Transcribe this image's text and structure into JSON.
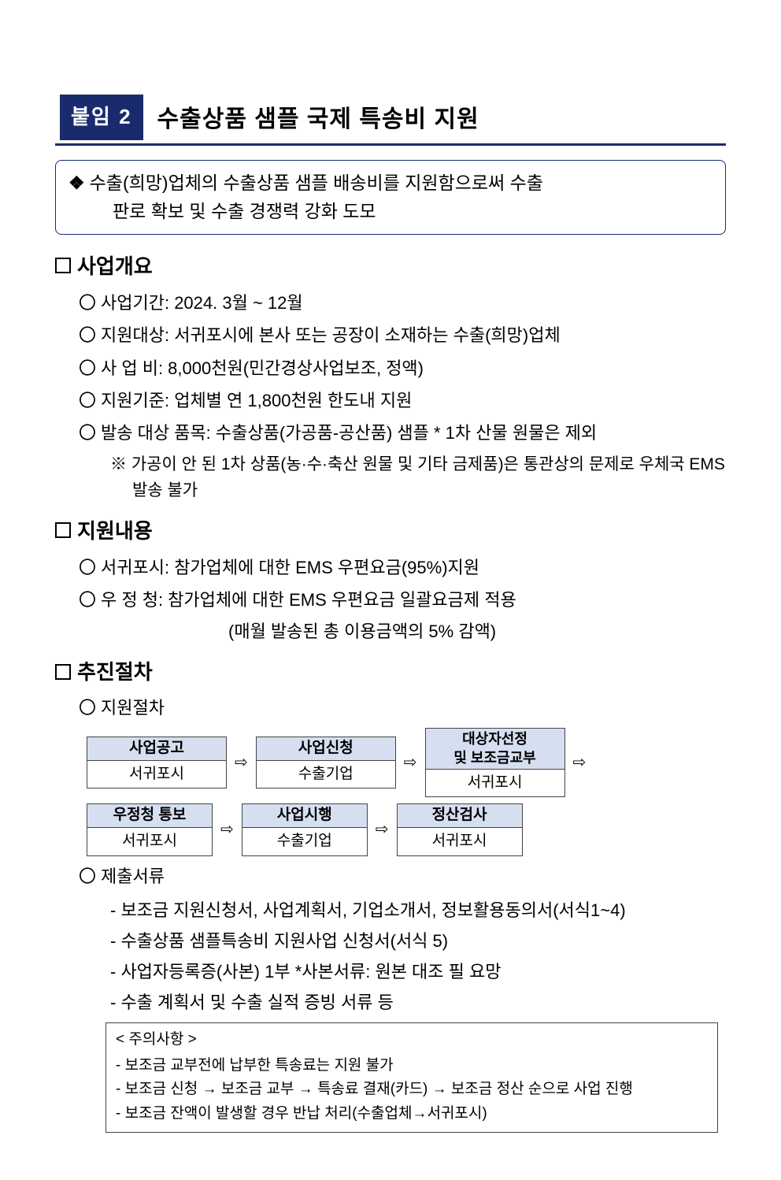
{
  "badge": "붙임 2",
  "title": "수출상품 샘플 국제 특송비 지원",
  "summary": {
    "line1": "수출(희망)업체의 수출상품 샘플 배송비를 지원함으로써 수출",
    "line2": "판로 확보 및 수출 경쟁력 강화 도모"
  },
  "sections": {
    "overview": {
      "head": "사업개요",
      "items": [
        "사업기간: 2024. 3월 ~ 12월",
        "지원대상: 서귀포시에 본사 또는 공장이 소재하는 수출(희망)업체",
        "사 업 비: 8,000천원(민간경상사업보조, 정액)",
        "지원기준: 업체별 연 1,800천원 한도내 지원",
        "발송 대상 품목: 수출상품(가공품-공산품) 샘플 * 1차 산물 원물은 제외"
      ],
      "note": "※ 가공이 안 된 1차 상품(농·수·축산 원물 및 기타 금제품)은 통관상의 문제로 우체국 EMS 발송 불가"
    },
    "content": {
      "head": "지원내용",
      "items": [
        "서귀포시: 참가업체에 대한 EMS 우편요금(95%)지원",
        "우 정 청: 참가업체에 대한 EMS 우편요금 일괄요금제 적용"
      ],
      "subline": "(매월 발송된 총 이용금액의 5% 감액)"
    },
    "procedure": {
      "head": "추진절차",
      "sub1": "지원절차",
      "flow": {
        "row1": [
          {
            "top": "사업공고",
            "bot": "서귀포시"
          },
          {
            "top": "사업신청",
            "bot": "수출기업"
          },
          {
            "top": "대상자선정\n및 보조금교부",
            "bot": "서귀포시",
            "two": true
          }
        ],
        "row2": [
          {
            "top": "우정청 통보",
            "bot": "서귀포시"
          },
          {
            "top": "사업시행",
            "bot": "수출기업"
          },
          {
            "top": "정산검사",
            "bot": "서귀포시"
          }
        ]
      },
      "sub2": "제출서류",
      "docs": [
        "- 보조금 지원신청서, 사업계획서, 기업소개서, 정보활용동의서(서식1~4)",
        "- 수출상품 샘플특송비 지원사업 신청서(서식 5)",
        "- 사업자등록증(사본) 1부      *사본서류: 원본 대조 필 요망",
        "- 수출 계획서 및 수출 실적 증빙 서류 등"
      ],
      "caution": {
        "title": "< 주의사항 >",
        "items": [
          "- 보조금 교부전에 납부한 특송료는 지원 불가",
          "- 보조금 신청 → 보조금 교부 → 특송료 결재(카드) → 보조금 정산 순으로 사업 진행",
          "- 보조금 잔액이 발생할 경우 반납 처리(수출업체→서귀포시)"
        ]
      }
    }
  },
  "arrow": "⇨",
  "colors": {
    "brand": "#1a2b6d",
    "flow_bg": "#d6dff0"
  }
}
